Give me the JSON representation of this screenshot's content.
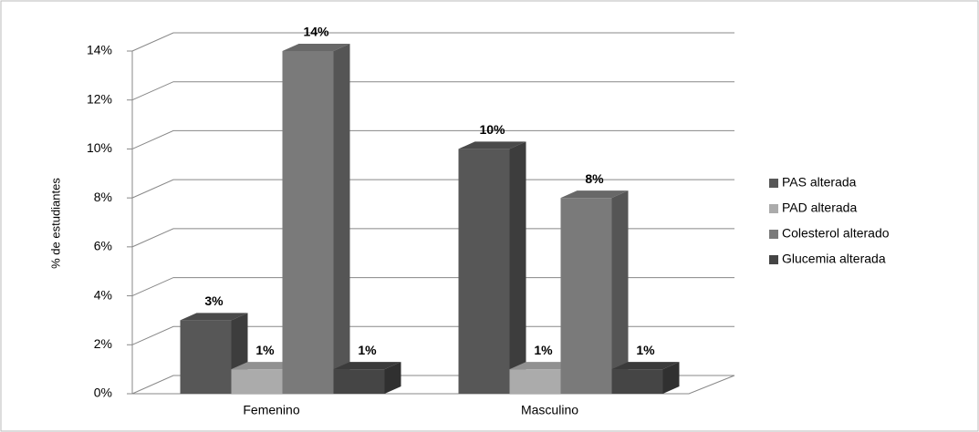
{
  "chart_data": {
    "type": "bar3d",
    "y_label": "% de estudiantes",
    "categories": [
      "Femenino",
      "Masculino"
    ],
    "series": [
      {
        "name": "PAS alterada",
        "color": "#575757",
        "values": [
          3,
          10
        ],
        "value_labels": [
          "3%",
          "10%"
        ]
      },
      {
        "name": "PAD alterada",
        "color": "#ababab",
        "values": [
          1,
          1
        ],
        "value_labels": [
          "1%",
          "1%"
        ]
      },
      {
        "name": "Colesterol alterado",
        "color": "#7a7a7a",
        "values": [
          14,
          8
        ],
        "value_labels": [
          "14%",
          "8%"
        ]
      },
      {
        "name": "Glucemia alterada",
        "color": "#454545",
        "values": [
          1,
          1
        ],
        "value_labels": [
          "1%",
          "1%"
        ]
      }
    ],
    "ylim": [
      0,
      14
    ],
    "yticks": [
      {
        "value": 0,
        "label": "0%"
      },
      {
        "value": 2,
        "label": "2%"
      },
      {
        "value": 4,
        "label": "4%"
      },
      {
        "value": 6,
        "label": "6%"
      },
      {
        "value": 8,
        "label": "8%"
      },
      {
        "value": 10,
        "label": "10%"
      },
      {
        "value": 12,
        "label": "12%"
      },
      {
        "value": 14,
        "label": "14%"
      }
    ],
    "grid": true,
    "legend": "right"
  }
}
